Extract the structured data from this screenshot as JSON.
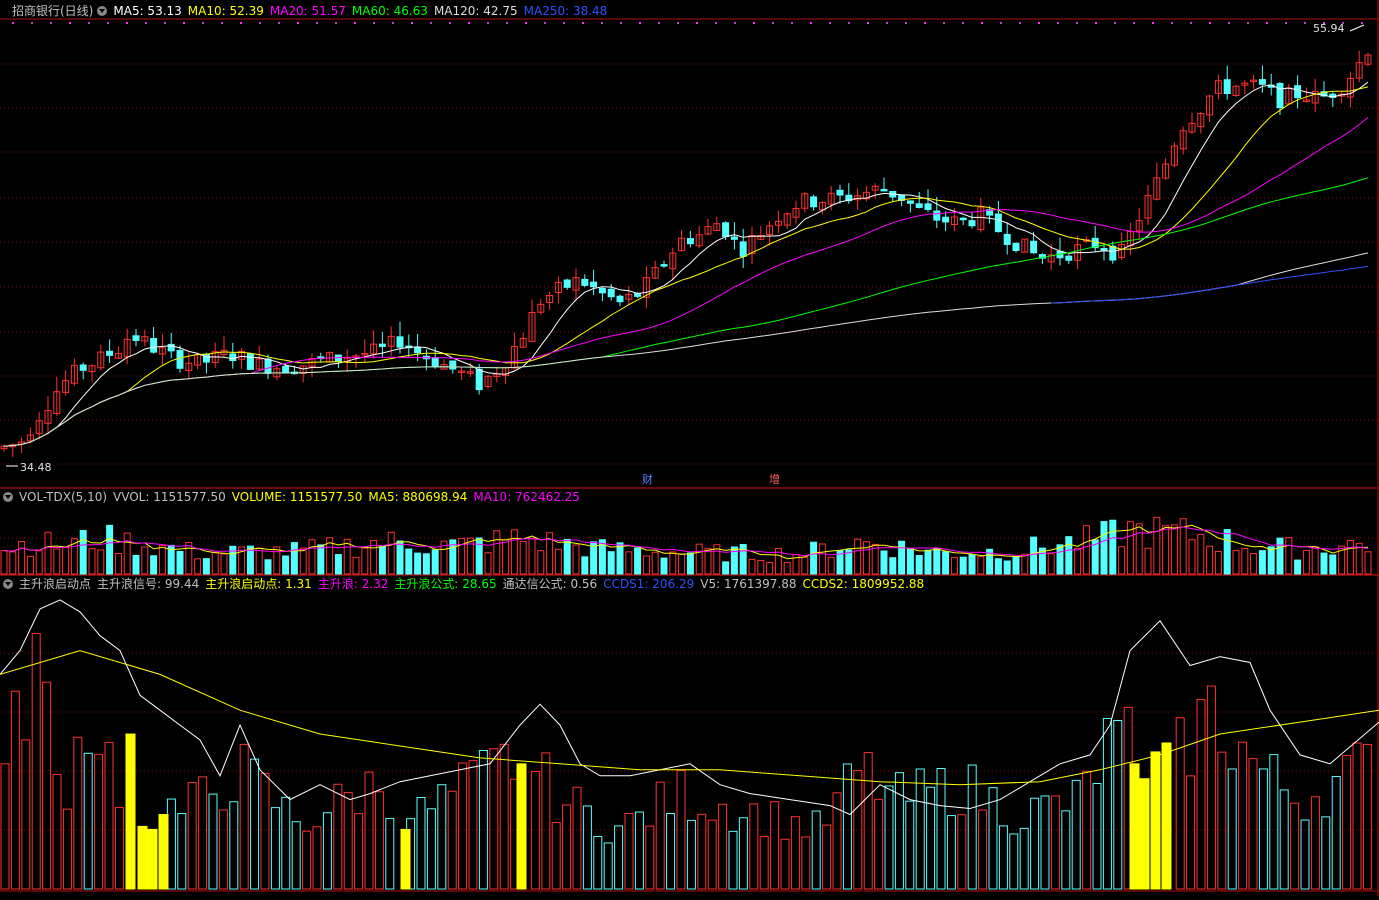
{
  "window_title": "招商银行(日线)",
  "main_panel": {
    "indicators": [
      {
        "label": "MA5: 53.13",
        "color": "#ffffff"
      },
      {
        "label": "MA10: 52.39",
        "color": "#ffff00"
      },
      {
        "label": "MA20: 51.57",
        "color": "#ff00ff"
      },
      {
        "label": "MA60: 46.63",
        "color": "#00ff00"
      },
      {
        "label": "MA120: 42.75",
        "color": "#dddddd"
      },
      {
        "label": "MA250: 38.48",
        "color": "#3050ff"
      }
    ],
    "high_label": "55.94",
    "low_label": "34.48",
    "markers": [
      {
        "text": "财",
        "color": "#6080ff"
      },
      {
        "text": "增",
        "color": "#ff6060"
      }
    ]
  },
  "volume_panel": {
    "indicators": [
      {
        "label": "VOL-TDX(5,10)",
        "color": "#c0c0c0"
      },
      {
        "label": "VVOL: 1151577.50",
        "color": "#c0c0c0"
      },
      {
        "label": "VOLUME: 1151577.50",
        "color": "#ffff00"
      },
      {
        "label": "MA5: 880698.94",
        "color": "#ffff00"
      },
      {
        "label": "MA10: 762462.25",
        "color": "#ff00ff"
      }
    ]
  },
  "signal_panel": {
    "indicators": [
      {
        "label": "主升浪启动点",
        "color": "#c0c0c0"
      },
      {
        "label": "主升浪信号: 99.44",
        "color": "#c0c0c0"
      },
      {
        "label": "主升浪启动点: 1.31",
        "color": "#ffff00"
      },
      {
        "label": "主升浪: 2.32",
        "color": "#ff00ff"
      },
      {
        "label": "主升浪公式: 28.65",
        "color": "#00ff00"
      },
      {
        "label": "通达信公式: 0.56",
        "color": "#c0c0c0"
      },
      {
        "label": "CCDS1: 206.29",
        "color": "#3050ff"
      },
      {
        "label": "V5: 1761397.88",
        "color": "#c0c0c0"
      },
      {
        "label": "CCDS2: 1809952.88",
        "color": "#ffff00"
      }
    ]
  },
  "colors": {
    "up": "#ff3030",
    "down": "#54ffff",
    "yellow": "#ffff00",
    "grid": "#7a0a0a",
    "frame": "#b01010"
  },
  "chart_data": {
    "type": "candlestick",
    "title": "招商银行(日线)",
    "ylim": [
      34.0,
      56.6
    ],
    "price_points": [
      [
        0,
        35.0
      ],
      [
        20,
        35.3
      ],
      [
        40,
        36.8
      ],
      [
        60,
        38.2
      ],
      [
        80,
        39.1
      ],
      [
        100,
        39.6
      ],
      [
        120,
        40.2
      ],
      [
        130,
        40.9
      ],
      [
        150,
        40.3
      ],
      [
        175,
        39.6
      ],
      [
        200,
        39.4
      ],
      [
        230,
        39.9
      ],
      [
        260,
        39.3
      ],
      [
        290,
        39.2
      ],
      [
        320,
        39.5
      ],
      [
        350,
        39.8
      ],
      [
        380,
        40.0
      ],
      [
        400,
        40.6
      ],
      [
        420,
        39.9
      ],
      [
        440,
        39.4
      ],
      [
        460,
        38.9
      ],
      [
        480,
        38.3
      ],
      [
        500,
        39.2
      ],
      [
        520,
        40.6
      ],
      [
        540,
        42.6
      ],
      [
        560,
        43.2
      ],
      [
        580,
        43.7
      ],
      [
        600,
        43.0
      ],
      [
        620,
        42.5
      ],
      [
        640,
        43.0
      ],
      [
        660,
        44.3
      ],
      [
        680,
        45.7
      ],
      [
        700,
        46.0
      ],
      [
        720,
        46.7
      ],
      [
        740,
        45.2
      ],
      [
        760,
        46.1
      ],
      [
        780,
        47.1
      ],
      [
        800,
        47.7
      ],
      [
        820,
        47.8
      ],
      [
        840,
        47.9
      ],
      [
        860,
        48.1
      ],
      [
        880,
        48.4
      ],
      [
        900,
        48.0
      ],
      [
        920,
        47.2
      ],
      [
        940,
        46.8
      ],
      [
        960,
        46.6
      ],
      [
        980,
        47.0
      ],
      [
        1000,
        46.2
      ],
      [
        1020,
        45.5
      ],
      [
        1040,
        44.8
      ],
      [
        1060,
        45.0
      ],
      [
        1080,
        45.3
      ],
      [
        1100,
        45.6
      ],
      [
        1120,
        44.9
      ],
      [
        1140,
        47.0
      ],
      [
        1160,
        49.0
      ],
      [
        1180,
        51.5
      ],
      [
        1200,
        52.5
      ],
      [
        1215,
        53.5
      ],
      [
        1240,
        53.7
      ],
      [
        1260,
        53.6
      ],
      [
        1280,
        53.0
      ],
      [
        1300,
        53.3
      ],
      [
        1320,
        53.0
      ],
      [
        1340,
        53.6
      ],
      [
        1355,
        54.5
      ],
      [
        1368,
        55.6
      ]
    ],
    "ma_series": [
      {
        "name": "MA5",
        "color": "#ffffff",
        "lag": 3,
        "start": 0
      },
      {
        "name": "MA10",
        "color": "#ffff00",
        "lag": 7,
        "start": 0
      },
      {
        "name": "MA20",
        "color": "#ff00ff",
        "lag": 14,
        "start": 0
      },
      {
        "name": "MA60",
        "color": "#00ff00",
        "lag": 34,
        "start": 0
      },
      {
        "name": "MA120",
        "color": "#dddddd",
        "lag": 70,
        "start": 0
      },
      {
        "name": "MA250",
        "color": "#3050ff",
        "lag": 150,
        "start": 1050
      }
    ],
    "volume_shape": [
      [
        0,
        0.35
      ],
      [
        30,
        0.45
      ],
      [
        60,
        0.4
      ],
      [
        100,
        0.5
      ],
      [
        200,
        0.3
      ],
      [
        300,
        0.32
      ],
      [
        380,
        0.45
      ],
      [
        460,
        0.4
      ],
      [
        520,
        0.5
      ],
      [
        600,
        0.35
      ],
      [
        700,
        0.3
      ],
      [
        800,
        0.28
      ],
      [
        860,
        0.45
      ],
      [
        940,
        0.3
      ],
      [
        1010,
        0.32
      ],
      [
        1100,
        0.5
      ],
      [
        1130,
        0.62
      ],
      [
        1200,
        0.55
      ],
      [
        1250,
        0.4
      ],
      [
        1300,
        0.35
      ],
      [
        1379,
        0.45
      ]
    ],
    "signal_white": [
      [
        0,
        0.72
      ],
      [
        20,
        0.8
      ],
      [
        40,
        0.94
      ],
      [
        60,
        0.97
      ],
      [
        80,
        0.93
      ],
      [
        100,
        0.85
      ],
      [
        120,
        0.8
      ],
      [
        140,
        0.65
      ],
      [
        160,
        0.6
      ],
      [
        180,
        0.55
      ],
      [
        200,
        0.5
      ],
      [
        220,
        0.38
      ],
      [
        240,
        0.55
      ],
      [
        260,
        0.4
      ],
      [
        290,
        0.3
      ],
      [
        320,
        0.35
      ],
      [
        350,
        0.3
      ],
      [
        370,
        0.32
      ],
      [
        400,
        0.36
      ],
      [
        430,
        0.38
      ],
      [
        460,
        0.4
      ],
      [
        490,
        0.42
      ],
      [
        520,
        0.55
      ],
      [
        540,
        0.62
      ],
      [
        560,
        0.55
      ],
      [
        580,
        0.42
      ],
      [
        600,
        0.38
      ],
      [
        630,
        0.38
      ],
      [
        660,
        0.4
      ],
      [
        690,
        0.42
      ],
      [
        720,
        0.35
      ],
      [
        750,
        0.32
      ],
      [
        790,
        0.3
      ],
      [
        830,
        0.28
      ],
      [
        850,
        0.25
      ],
      [
        880,
        0.35
      ],
      [
        910,
        0.3
      ],
      [
        940,
        0.28
      ],
      [
        970,
        0.27
      ],
      [
        1000,
        0.3
      ],
      [
        1030,
        0.36
      ],
      [
        1060,
        0.42
      ],
      [
        1090,
        0.45
      ],
      [
        1110,
        0.55
      ],
      [
        1130,
        0.8
      ],
      [
        1160,
        0.9
      ],
      [
        1190,
        0.75
      ],
      [
        1220,
        0.78
      ],
      [
        1250,
        0.76
      ],
      [
        1270,
        0.6
      ],
      [
        1300,
        0.45
      ],
      [
        1330,
        0.42
      ],
      [
        1379,
        0.56
      ]
    ],
    "signal_yellow": [
      [
        0,
        0.72
      ],
      [
        80,
        0.8
      ],
      [
        160,
        0.72
      ],
      [
        240,
        0.6
      ],
      [
        320,
        0.52
      ],
      [
        400,
        0.48
      ],
      [
        480,
        0.44
      ],
      [
        560,
        0.42
      ],
      [
        640,
        0.4
      ],
      [
        720,
        0.4
      ],
      [
        800,
        0.38
      ],
      [
        880,
        0.36
      ],
      [
        960,
        0.35
      ],
      [
        1040,
        0.36
      ],
      [
        1100,
        0.4
      ],
      [
        1160,
        0.45
      ],
      [
        1220,
        0.52
      ],
      [
        1300,
        0.56
      ],
      [
        1379,
        0.6
      ]
    ],
    "signal_yellow_bars": [
      [
        130,
        0.52
      ],
      [
        142,
        0.21
      ],
      [
        152,
        0.2
      ],
      [
        163,
        0.25
      ],
      [
        405,
        0.2
      ],
      [
        521,
        0.42
      ],
      [
        1134,
        0.42
      ],
      [
        1144,
        0.37
      ],
      [
        1155,
        0.46
      ],
      [
        1166,
        0.49
      ]
    ],
    "signal_bar_shape": [
      [
        0,
        0.32
      ],
      [
        36,
        0.8
      ],
      [
        60,
        0.3
      ],
      [
        90,
        0.6
      ],
      [
        120,
        0.35
      ],
      [
        180,
        0.25
      ],
      [
        240,
        0.4
      ],
      [
        300,
        0.22
      ],
      [
        380,
        0.36
      ],
      [
        420,
        0.25
      ],
      [
        470,
        0.35
      ],
      [
        520,
        0.45
      ],
      [
        560,
        0.3
      ],
      [
        620,
        0.2
      ],
      [
        680,
        0.32
      ],
      [
        760,
        0.25
      ],
      [
        820,
        0.2
      ],
      [
        860,
        0.4
      ],
      [
        900,
        0.3
      ],
      [
        960,
        0.35
      ],
      [
        1020,
        0.25
      ],
      [
        1080,
        0.3
      ],
      [
        1110,
        0.5
      ],
      [
        1180,
        0.45
      ],
      [
        1210,
        0.6
      ],
      [
        1260,
        0.4
      ],
      [
        1300,
        0.3
      ],
      [
        1379,
        0.43
      ]
    ]
  }
}
